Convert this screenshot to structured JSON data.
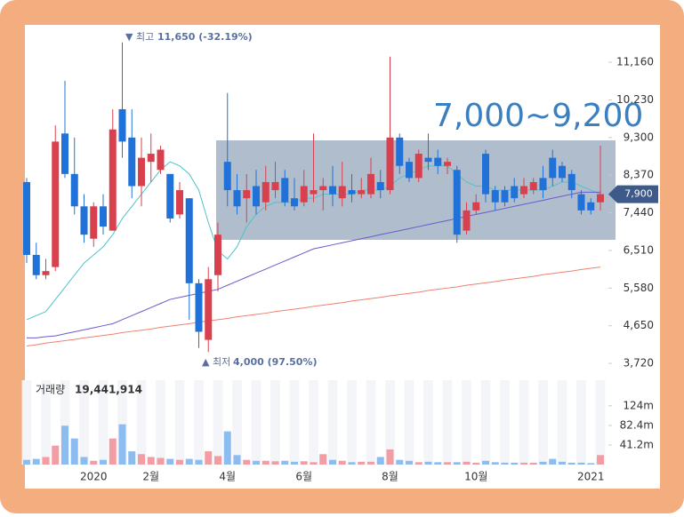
{
  "chart_data": {
    "type": "candlestick",
    "categories": [
      null,
      null,
      null,
      null,
      null,
      null,
      null,
      "2020",
      null,
      null,
      null,
      null,
      null,
      "2월",
      null,
      null,
      null,
      null,
      null,
      null,
      null,
      "4월",
      null,
      null,
      null,
      null,
      null,
      null,
      null,
      "6월",
      null,
      null,
      null,
      null,
      null,
      null,
      null,
      null,
      "8월",
      null,
      null,
      null,
      null,
      null,
      null,
      null,
      null,
      "10월",
      null,
      null,
      null,
      null,
      null,
      null,
      null,
      null,
      null,
      null,
      null,
      "2021",
      null
    ],
    "open": [
      8200,
      6400,
      5900,
      6100,
      9400,
      8400,
      7600,
      6800,
      7600,
      7000,
      10000,
      9300,
      8100,
      8700,
      8500,
      8400,
      7400,
      7800,
      5700,
      4300,
      5900,
      8700,
      8000,
      7800,
      8100,
      7700,
      8000,
      8300,
      7800,
      7700,
      7900,
      8000,
      8100,
      7800,
      8000,
      7900,
      7900,
      8200,
      8000,
      9300,
      8700,
      8300,
      8800,
      8800,
      8600,
      8500,
      7000,
      7500,
      8900,
      8000,
      8000,
      8100,
      7900,
      8000,
      8300,
      8800,
      8600,
      8400,
      7900,
      7700,
      7700
    ],
    "high": [
      8300,
      6700,
      6300,
      9600,
      10700,
      9300,
      7900,
      7700,
      7900,
      10000,
      11650,
      10000,
      9300,
      9400,
      9100,
      8400,
      8200,
      7800,
      5800,
      6100,
      7200,
      10400,
      8400,
      8400,
      8500,
      8600,
      8700,
      8500,
      8300,
      8500,
      9400,
      8300,
      8600,
      8700,
      8400,
      8300,
      8800,
      8500,
      11300,
      9400,
      8800,
      9000,
      9400,
      9000,
      8800,
      8600,
      7700,
      7900,
      9000,
      8100,
      8100,
      8300,
      8300,
      8300,
      8600,
      9000,
      8700,
      8500,
      8000,
      7800,
      9100
    ],
    "low": [
      6200,
      5800,
      5800,
      6000,
      8300,
      7400,
      6700,
      6600,
      6900,
      7000,
      8800,
      7800,
      7600,
      8200,
      8400,
      7200,
      7300,
      4800,
      4100,
      4000,
      5500,
      7600,
      7400,
      7200,
      7400,
      7500,
      7800,
      7600,
      7500,
      7600,
      7700,
      7500,
      7600,
      7600,
      7700,
      7800,
      7800,
      7800,
      7900,
      8400,
      8200,
      8200,
      8500,
      8400,
      8400,
      6700,
      6900,
      7400,
      7700,
      7500,
      7600,
      7700,
      7800,
      7900,
      7800,
      8100,
      8200,
      7800,
      7400,
      7400,
      7500
    ],
    "close": [
      6400,
      5900,
      6000,
      9200,
      8400,
      7600,
      6900,
      7600,
      7100,
      9500,
      9200,
      8100,
      8800,
      8900,
      9000,
      7300,
      8000,
      5700,
      4500,
      5800,
      6900,
      8000,
      7600,
      8000,
      7600,
      8200,
      8200,
      7700,
      7600,
      8100,
      8000,
      8100,
      7900,
      8100,
      7900,
      8000,
      8400,
      8000,
      9300,
      8600,
      8300,
      8900,
      8700,
      8600,
      8700,
      6900,
      7500,
      7700,
      7900,
      7700,
      7700,
      7800,
      8100,
      8200,
      8000,
      8300,
      8300,
      8000,
      7500,
      7500,
      7900
    ],
    "volume": [
      10,
      12,
      16,
      40,
      82,
      55,
      16,
      8,
      10,
      55,
      85,
      28,
      22,
      16,
      14,
      12,
      10,
      12,
      10,
      28,
      18,
      70,
      20,
      10,
      8,
      8,
      7,
      8,
      6,
      7,
      5,
      22,
      10,
      8,
      5,
      6,
      6,
      16,
      32,
      10,
      8,
      5,
      6,
      5,
      5,
      5,
      6,
      4,
      8,
      5,
      4,
      4,
      4,
      4,
      6,
      12,
      6,
      4,
      4,
      3,
      20
    ],
    "up_color": "#d9404d",
    "down_color": "#2071d8",
    "up_volume_color": "#f29ca3",
    "down_volume_color": "#8cbcf0",
    "moving_averages": [
      {
        "color": "#4fc3c9",
        "values": [
          4800,
          4900,
          5000,
          5300,
          5600,
          5900,
          6200,
          6400,
          6600,
          6900,
          7300,
          7600,
          7900,
          8200,
          8500,
          8700,
          8600,
          8400,
          8000,
          7200,
          6500,
          6300,
          6600,
          7100,
          7400,
          7600,
          7700,
          7700,
          7700,
          7800,
          7800,
          7900,
          7900,
          7900,
          7900,
          8000,
          8000,
          8000,
          8100,
          8300,
          8400,
          8500,
          8600,
          8600,
          8600,
          8400,
          8200,
          8100,
          8100,
          8000,
          8000,
          8000,
          8000,
          8000,
          8000,
          8100,
          8200,
          8200,
          8100,
          8000,
          7900
        ]
      },
      {
        "color": "#6a5acd",
        "values": [
          4350,
          4350,
          4380,
          4400,
          4450,
          4500,
          4550,
          4600,
          4650,
          4700,
          4800,
          4900,
          5000,
          5100,
          5200,
          5300,
          5350,
          5400,
          5450,
          5500,
          5550,
          5650,
          5750,
          5850,
          5950,
          6050,
          6150,
          6250,
          6350,
          6450,
          6550,
          6600,
          6650,
          6700,
          6750,
          6800,
          6850,
          6900,
          6950,
          7000,
          7050,
          7100,
          7150,
          7200,
          7250,
          7300,
          7350,
          7400,
          7450,
          7500,
          7550,
          7600,
          7650,
          7700,
          7750,
          7800,
          7850,
          7900,
          7950,
          7950,
          7950
        ]
      },
      {
        "color": "#f08070",
        "values": [
          4150,
          4180,
          4220,
          4250,
          4280,
          4310,
          4350,
          4380,
          4410,
          4440,
          4480,
          4510,
          4540,
          4570,
          4610,
          4640,
          4670,
          4700,
          4740,
          4770,
          4800,
          4830,
          4870,
          4900,
          4930,
          4960,
          5000,
          5030,
          5060,
          5090,
          5130,
          5160,
          5190,
          5220,
          5260,
          5290,
          5320,
          5350,
          5390,
          5420,
          5450,
          5480,
          5520,
          5550,
          5580,
          5610,
          5650,
          5680,
          5710,
          5740,
          5780,
          5810,
          5840,
          5870,
          5910,
          5940,
          5970,
          6000,
          6040,
          6070,
          6100
        ]
      }
    ],
    "ylim": [
      3370,
      12040
    ],
    "yticks": [
      {
        "value": 3720,
        "label": "3,720"
      },
      {
        "value": 4650,
        "label": "4,650"
      },
      {
        "value": 5580,
        "label": "5,580"
      },
      {
        "value": 6510,
        "label": "6,510"
      },
      {
        "value": 7440,
        "label": "7,440"
      },
      {
        "value": 8370,
        "label": "8,370"
      },
      {
        "value": 9300,
        "label": "9,300"
      },
      {
        "value": 10230,
        "label": "10,230"
      },
      {
        "value": 11160,
        "label": "11,160"
      }
    ],
    "volume_ylim": [
      0,
      178
    ],
    "volume_yticks": [
      {
        "value": 41.2,
        "label": "41.2m"
      },
      {
        "value": 82.4,
        "label": "82.4m"
      },
      {
        "value": 124,
        "label": "124m"
      }
    ],
    "current_price": {
      "value": 7900,
      "label": "7,900"
    },
    "volume_title": "거래량",
    "volume_total": "19,441,914",
    "high_annotation": {
      "marker": "▼ 최고",
      "text": "11,650 (-32.19%)"
    },
    "low_annotation": {
      "marker": "▲ 최저",
      "text": "4,000 (97.50%)"
    },
    "range_annotation": "7,000~9,200"
  }
}
